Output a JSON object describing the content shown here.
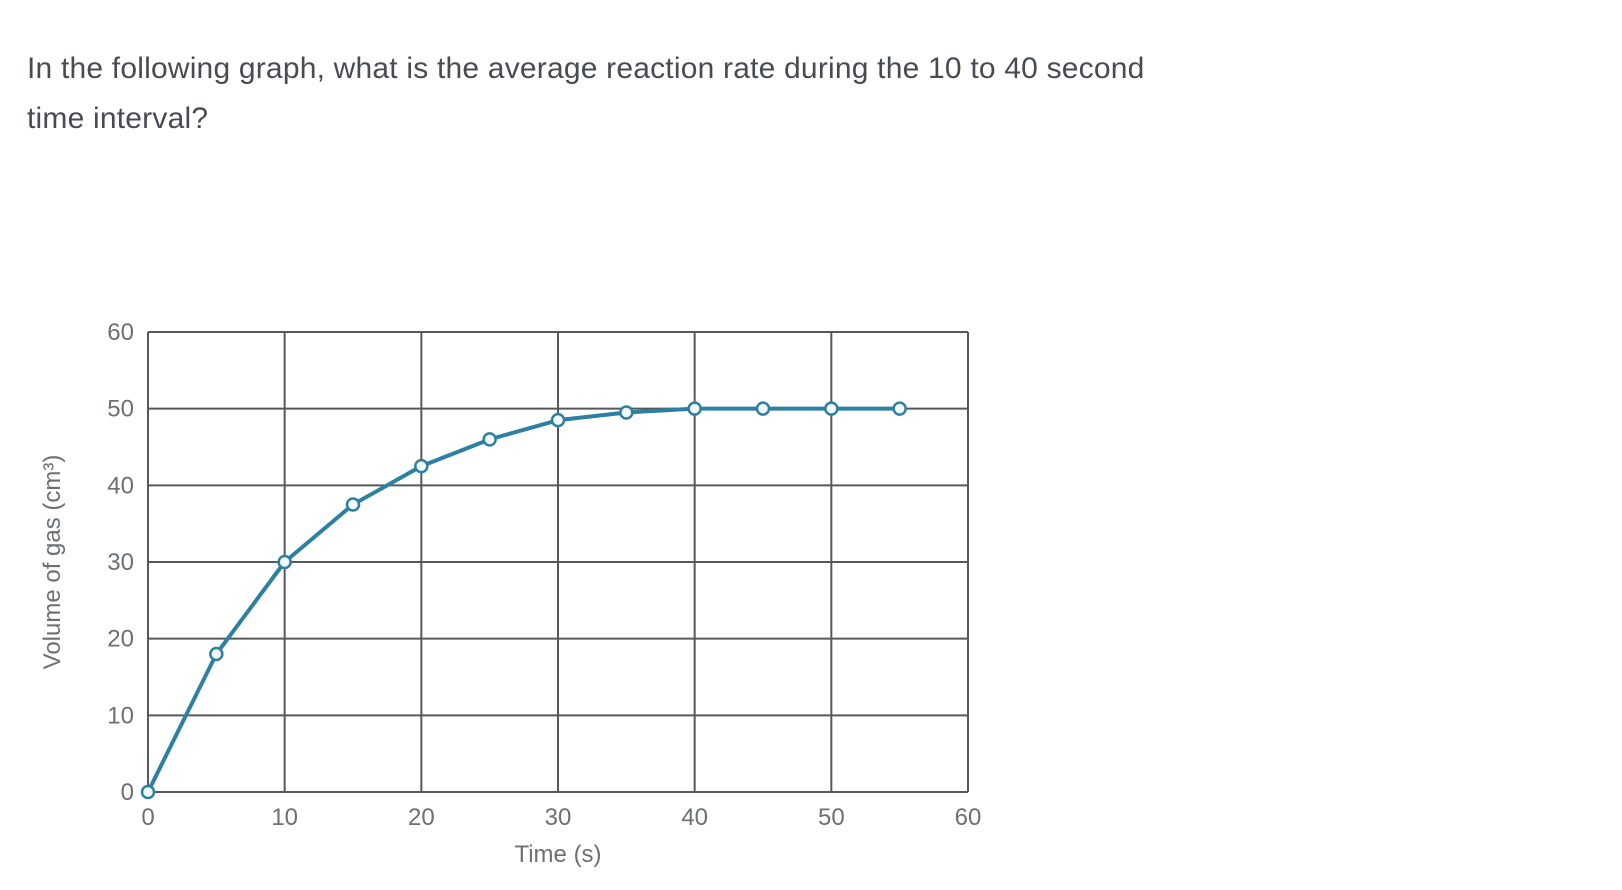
{
  "question": {
    "line1": "In the following graph, what is the average reaction rate during the 10 to 40 second",
    "line2": "time interval?"
  },
  "chart_data": {
    "type": "line",
    "title": "",
    "xlabel": "Time (s)",
    "ylabel": "Volume of gas (cm³)",
    "x": [
      0,
      5,
      10,
      15,
      20,
      25,
      30,
      35,
      40,
      45,
      50,
      55
    ],
    "series": [
      {
        "name": "Volume of gas",
        "values": [
          0,
          18,
          30,
          37.5,
          42.5,
          46,
          48.5,
          49.5,
          50,
          50,
          50,
          50
        ]
      }
    ],
    "xlim": [
      0,
      60
    ],
    "ylim": [
      0,
      60
    ],
    "xticks": [
      0,
      10,
      20,
      30,
      40,
      50,
      60
    ],
    "yticks": [
      0,
      10,
      20,
      30,
      40,
      50,
      60
    ],
    "grid": true,
    "legend_position": "none",
    "marker": "open-circle",
    "colors": {
      "line": "#2e80a2",
      "marker_fill": "#f2fafd",
      "grid": "#55595c",
      "tick_text": "#6b7074",
      "question_text": "#474c52"
    }
  }
}
